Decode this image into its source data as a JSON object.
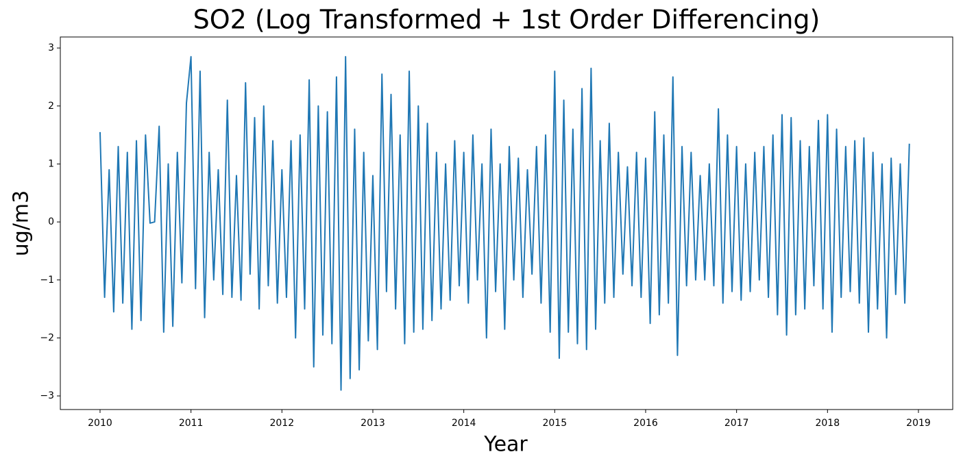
{
  "chart_data": {
    "type": "line",
    "title": "SO2 (Log Transformed + 1st Order Differencing)",
    "x_label": "Year",
    "y_label": "ug/m3",
    "xlim": [
      2009.563,
      2019.377
    ],
    "ylim": [
      -3.235,
      3.19
    ],
    "xticks": [
      2010,
      2011,
      2012,
      2013,
      2014,
      2015,
      2016,
      2017,
      2018,
      2019
    ],
    "yticks": [
      {
        "value": -3,
        "label": "−3"
      },
      {
        "value": -2,
        "label": "−2"
      },
      {
        "value": -1,
        "label": "−1"
      },
      0,
      1,
      2,
      3
    ],
    "grid": false,
    "x": [
      2010,
      2010.05,
      2010.1,
      2010.15,
      2010.2,
      2010.25,
      2010.3,
      2010.35,
      2010.4,
      2010.45,
      2010.5,
      2010.55,
      2010.6,
      2010.65,
      2010.7,
      2010.75,
      2010.8,
      2010.85,
      2010.9,
      2010.95,
      2011,
      2011.05,
      2011.1,
      2011.15,
      2011.2,
      2011.25,
      2011.3,
      2011.35,
      2011.4,
      2011.45,
      2011.5,
      2011.55,
      2011.6,
      2011.65,
      2011.7,
      2011.75,
      2011.8,
      2011.85,
      2011.9,
      2011.95,
      2012,
      2012.05,
      2012.1,
      2012.15,
      2012.2,
      2012.25,
      2012.3,
      2012.35,
      2012.4,
      2012.45,
      2012.5,
      2012.55,
      2012.6,
      2012.65,
      2012.7,
      2012.75,
      2012.8,
      2012.85,
      2012.9,
      2012.95,
      2013,
      2013.05,
      2013.1,
      2013.15,
      2013.2,
      2013.25,
      2013.3,
      2013.35,
      2013.4,
      2013.45,
      2013.5,
      2013.55,
      2013.6,
      2013.65,
      2013.7,
      2013.75,
      2013.8,
      2013.85,
      2013.9,
      2013.95,
      2014,
      2014.05,
      2014.1,
      2014.15,
      2014.2,
      2014.25,
      2014.3,
      2014.35,
      2014.4,
      2014.45,
      2014.5,
      2014.55,
      2014.6,
      2014.65,
      2014.7,
      2014.75,
      2014.8,
      2014.85,
      2014.9,
      2014.95,
      2015,
      2015.05,
      2015.1,
      2015.15,
      2015.2,
      2015.25,
      2015.3,
      2015.35,
      2015.4,
      2015.45,
      2015.5,
      2015.55,
      2015.6,
      2015.65,
      2015.7,
      2015.75,
      2015.8,
      2015.85,
      2015.9,
      2015.95,
      2016,
      2016.05,
      2016.1,
      2016.15,
      2016.2,
      2016.25,
      2016.3,
      2016.35,
      2016.4,
      2016.45,
      2016.5,
      2016.55,
      2016.6,
      2016.65,
      2016.7,
      2016.75,
      2016.8,
      2016.85,
      2016.9,
      2016.95,
      2017,
      2017.05,
      2017.1,
      2017.15,
      2017.2,
      2017.25,
      2017.3,
      2017.35,
      2017.4,
      2017.45,
      2017.5,
      2017.55,
      2017.6,
      2017.65,
      2017.7,
      2017.75,
      2017.8,
      2017.85,
      2017.9,
      2017.95,
      2018,
      2018.05,
      2018.1,
      2018.15,
      2018.2,
      2018.25,
      2018.3,
      2018.35,
      2018.4,
      2018.45,
      2018.5,
      2018.55,
      2018.6,
      2018.65,
      2018.7,
      2018.75,
      2018.8,
      2018.85,
      2018.9
    ],
    "series": [
      {
        "color": "#1f77b4",
        "values": [
          1.55,
          -1.3,
          0.9,
          -1.55,
          1.3,
          -1.4,
          1.2,
          -1.85,
          1.4,
          -1.7,
          1.5,
          -0.02,
          0.0,
          1.65,
          -1.9,
          1.0,
          -1.8,
          1.2,
          -1.05,
          2.05,
          2.85,
          -1.15,
          2.6,
          -1.65,
          1.2,
          -1.0,
          0.9,
          -1.25,
          2.1,
          -1.3,
          0.8,
          -1.35,
          2.4,
          -0.9,
          1.8,
          -1.5,
          2.0,
          -1.1,
          1.4,
          -1.4,
          0.9,
          -1.3,
          1.4,
          -2.0,
          1.5,
          -1.5,
          2.45,
          -2.5,
          2.0,
          -1.95,
          1.9,
          -2.1,
          2.5,
          -2.9,
          2.85,
          -2.7,
          1.6,
          -2.55,
          1.2,
          -2.05,
          0.8,
          -2.2,
          2.55,
          -1.2,
          2.2,
          -1.5,
          1.5,
          -2.1,
          2.6,
          -1.9,
          2.0,
          -1.85,
          1.7,
          -1.7,
          1.2,
          -1.5,
          1.0,
          -1.35,
          1.4,
          -1.1,
          1.2,
          -1.4,
          1.5,
          -1.0,
          1.0,
          -2.0,
          1.6,
          -1.2,
          1.0,
          -1.85,
          1.3,
          -1.0,
          1.1,
          -1.3,
          0.9,
          -0.9,
          1.3,
          -1.4,
          1.5,
          -1.9,
          2.6,
          -2.35,
          2.1,
          -1.9,
          1.6,
          -2.1,
          2.3,
          -2.2,
          2.65,
          -1.85,
          1.4,
          -1.4,
          1.7,
          -1.3,
          1.2,
          -0.9,
          0.95,
          -1.1,
          1.2,
          -1.3,
          1.1,
          -1.75,
          1.9,
          -1.6,
          1.5,
          -1.4,
          2.5,
          -2.3,
          1.3,
          -1.1,
          1.2,
          -1.0,
          0.8,
          -1.0,
          1.0,
          -1.1,
          1.95,
          -1.4,
          1.5,
          -1.2,
          1.3,
          -1.35,
          1.0,
          -1.2,
          1.2,
          -1.0,
          1.3,
          -1.3,
          1.5,
          -1.6,
          1.85,
          -1.95,
          1.8,
          -1.6,
          1.4,
          -1.5,
          1.3,
          -1.1,
          1.75,
          -1.5,
          1.85,
          -1.9,
          1.6,
          -1.3,
          1.3,
          -1.2,
          1.4,
          -1.4,
          1.45,
          -1.9,
          1.2,
          -1.5,
          1.0,
          -2.0,
          1.1,
          -1.25,
          1.0,
          -1.4,
          1.35
        ]
      }
    ]
  }
}
